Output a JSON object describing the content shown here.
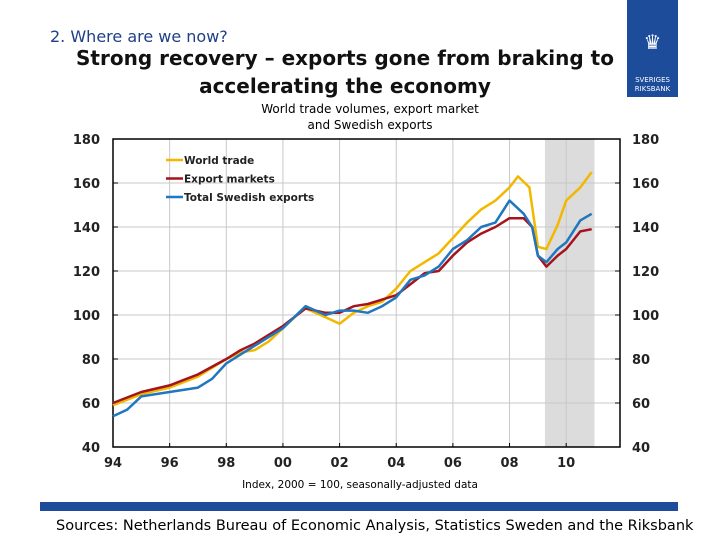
{
  "header": {
    "section": "2. Where are we now?",
    "title_line1": "Strong recovery – exports gone from braking to",
    "title_line2": "accelerating the economy"
  },
  "logo": {
    "line1": "SVERIGES",
    "line2": "RIKSBANK"
  },
  "colors": {
    "brand": "#1d4c9a",
    "world_trade": "#f2b800",
    "export_markets": "#a4141c",
    "swedish_exports": "#1f77c0",
    "forecast_shade": "#dcdcdc"
  },
  "footer": {
    "note": "Index, 2000 = 100, seasonally-adjusted data",
    "source": "Sources: Netherlands Bureau of Economic Analysis, Statistics Sweden and the Riksbank"
  },
  "chart_data": {
    "type": "line",
    "title": "World trade volumes, export market and Swedish exports",
    "title_line1": "World trade volumes, export market",
    "title_line2": "and Swedish exports",
    "xlim": [
      1994,
      2011.9
    ],
    "ylim": [
      40,
      180
    ],
    "yticks": [
      40,
      60,
      80,
      100,
      120,
      140,
      160,
      180
    ],
    "xticks": [
      {
        "x": 1994,
        "label": "94"
      },
      {
        "x": 1996,
        "label": "96"
      },
      {
        "x": 1998,
        "label": "98"
      },
      {
        "x": 2000,
        "label": "00"
      },
      {
        "x": 2002,
        "label": "02"
      },
      {
        "x": 2004,
        "label": "04"
      },
      {
        "x": 2006,
        "label": "06"
      },
      {
        "x": 2008,
        "label": "08"
      },
      {
        "x": 2010,
        "label": "10"
      }
    ],
    "grid": true,
    "dual_y_axis": true,
    "legend": "top-left",
    "shaded_region": [
      2009.25,
      2011.0
    ],
    "series": [
      {
        "name": "World trade",
        "color": "#f2b800",
        "x": [
          1994,
          1995,
          1996,
          1997,
          1997.5,
          1998,
          1998.5,
          1999,
          1999.5,
          2000,
          2000.5,
          2000.8,
          2001.5,
          2002,
          2002.5,
          2003,
          2003.5,
          2004,
          2004.5,
          2005,
          2005.5,
          2006,
          2006.5,
          2007,
          2007.5,
          2008,
          2008.3,
          2008.7,
          2009,
          2009.3,
          2009.7,
          2010,
          2010.5,
          2010.9
        ],
        "y": [
          59,
          64,
          67,
          72,
          76,
          80,
          83,
          84,
          88,
          94,
          100,
          103,
          99,
          96,
          101,
          104,
          106,
          112,
          120,
          124,
          128,
          135,
          142,
          148,
          152,
          158,
          163,
          158,
          131,
          130,
          141,
          152,
          158,
          165
        ]
      },
      {
        "name": "Export markets",
        "color": "#a4141c",
        "x": [
          1994,
          1995,
          1996,
          1997,
          1998,
          1998.5,
          1999,
          2000,
          2000.8,
          2001.5,
          2002,
          2002.5,
          2003,
          2003.5,
          2004,
          2004.5,
          2005,
          2005.5,
          2006,
          2006.5,
          2007,
          2007.5,
          2008,
          2008.5,
          2008.8,
          2009,
          2009.3,
          2009.7,
          2010,
          2010.5,
          2010.9
        ],
        "y": [
          60,
          65,
          68,
          73,
          80,
          84,
          87,
          95,
          103,
          101,
          101,
          104,
          105,
          107,
          109,
          114,
          119,
          120,
          127,
          133,
          137,
          140,
          144,
          144,
          140,
          127,
          122,
          127,
          130,
          138,
          139
        ]
      },
      {
        "name": "Total Swedish exports",
        "color": "#1f77c0",
        "x": [
          1994,
          1994.5,
          1995,
          1996,
          1997,
          1997.5,
          1998,
          1998.5,
          1999,
          2000,
          2000.8,
          2001.5,
          2002,
          2002.5,
          2003,
          2003.5,
          2004,
          2004.5,
          2005,
          2005.5,
          2006,
          2006.5,
          2007,
          2007.5,
          2008,
          2008.5,
          2008.8,
          2009,
          2009.3,
          2009.7,
          2010,
          2010.5,
          2010.9
        ],
        "y": [
          54,
          57,
          63,
          65,
          67,
          71,
          78,
          82,
          86,
          94,
          104,
          100,
          102,
          102,
          101,
          104,
          108,
          116,
          118,
          122,
          130,
          134,
          140,
          142,
          152,
          146,
          140,
          127,
          124,
          130,
          133,
          143,
          146
        ]
      }
    ]
  }
}
